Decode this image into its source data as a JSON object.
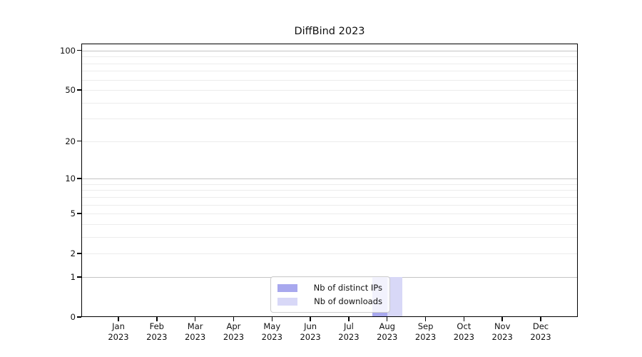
{
  "title": "DiffBind 2023",
  "colors": {
    "distinct_ips": "#a8a8ee",
    "downloads": "#d8d8f7",
    "grid_major": "#c4c4c4",
    "grid_minor": "#ececec",
    "axis": "#000000",
    "legend_border": "#cccccc",
    "background": "#ffffff"
  },
  "chart_data": {
    "type": "bar",
    "title": "DiffBind 2023",
    "categories": [
      "Jan",
      "Feb",
      "Mar",
      "Apr",
      "May",
      "Jun",
      "Jul",
      "Aug",
      "Sep",
      "Oct",
      "Nov",
      "Dec"
    ],
    "tick_year": "2023",
    "series": [
      {
        "name": "Nb of distinct IPs",
        "color": "#a8a8ee",
        "values": [
          0,
          0,
          0,
          0,
          0,
          0,
          0,
          1,
          0,
          0,
          0,
          0
        ]
      },
      {
        "name": "Nb of downloads",
        "color": "#d8d8f7",
        "values": [
          0,
          0,
          0,
          0,
          0,
          0,
          0,
          1,
          0,
          0,
          0,
          0
        ]
      }
    ],
    "xlabel": "",
    "ylabel": "",
    "yscale": "log1p",
    "ylim": [
      0,
      113
    ],
    "yticks": [
      0,
      1,
      2,
      5,
      10,
      20,
      50,
      100
    ],
    "grid_major": [
      1,
      10,
      100
    ],
    "grid_minor": [
      2,
      3,
      4,
      5,
      6,
      7,
      8,
      9,
      20,
      30,
      40,
      50,
      60,
      70,
      80,
      90
    ],
    "grid": "on",
    "legend_position": "lower-center-inside"
  }
}
